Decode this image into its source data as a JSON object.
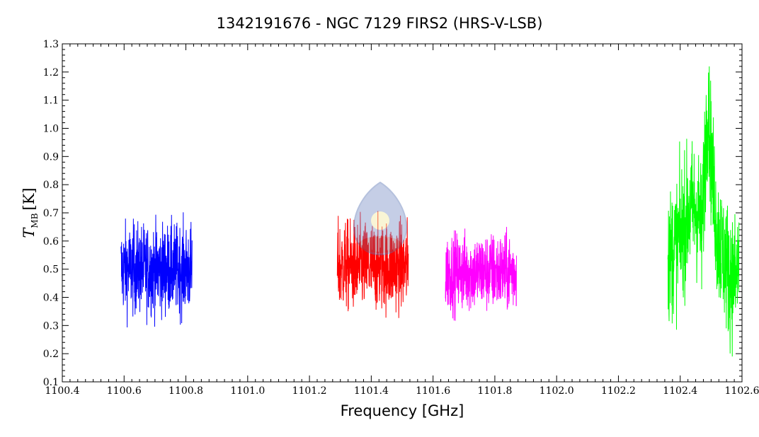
{
  "chart_data": {
    "type": "line",
    "title": "1342191676 - NGC 7129 FIRS2 (HRS-V-LSB)",
    "xlabel": "Frequency [GHz]",
    "ylabel_main": "T",
    "ylabel_sub": "MB",
    "ylabel_unit": "[K]",
    "xlim": [
      1100.4,
      1102.6
    ],
    "ylim": [
      0.1,
      1.3
    ],
    "xticks": [
      1100.4,
      1100.6,
      1100.8,
      1101.0,
      1101.2,
      1101.4,
      1101.6,
      1101.8,
      1102.0,
      1102.2,
      1102.4,
      1102.6
    ],
    "xtick_labels": [
      "1100.4",
      "1100.6",
      "1100.8",
      "1101.0",
      "1101.2",
      "1101.4",
      "1101.6",
      "1101.8",
      "1102.0",
      "1102.2",
      "1102.4",
      "1102.6"
    ],
    "yticks": [
      0.1,
      0.2,
      0.3,
      0.4,
      0.5,
      0.6,
      0.7,
      0.8,
      0.9,
      1.0,
      1.1,
      1.2,
      1.3
    ],
    "ytick_labels": [
      "0.1",
      "0.2",
      "0.3",
      "0.4",
      "0.5",
      "0.6",
      "0.7",
      "0.8",
      "0.9",
      "1.0",
      "1.1",
      "1.2",
      "1.3"
    ],
    "grid": false,
    "legend": "none",
    "series": [
      {
        "color": "#0000ff",
        "x_start": 1100.59,
        "x_end": 1100.82,
        "mean": 0.5,
        "min": 0.27,
        "max": 0.75
      },
      {
        "color": "#ff0000",
        "x_start": 1101.29,
        "x_end": 1101.52,
        "mean": 0.51,
        "min": 0.29,
        "max": 0.76
      },
      {
        "color": "#ff00ff",
        "x_start": 1101.64,
        "x_end": 1101.87,
        "mean": 0.49,
        "min": 0.27,
        "max": 0.65
      },
      {
        "color": "#00ff00",
        "x_start": 1102.36,
        "x_end": 1102.59,
        "mean": 0.55,
        "min": 0.19,
        "max": 1.22,
        "profile": [
          [
            1102.36,
            0.54
          ],
          [
            1102.38,
            0.57
          ],
          [
            1102.4,
            0.62
          ],
          [
            1102.42,
            0.68
          ],
          [
            1102.44,
            0.72
          ],
          [
            1102.46,
            0.7
          ],
          [
            1102.47,
            0.62
          ],
          [
            1102.48,
            0.9
          ],
          [
            1102.49,
            1.1
          ],
          [
            1102.5,
            0.9
          ],
          [
            1102.51,
            0.75
          ],
          [
            1102.52,
            0.62
          ],
          [
            1102.54,
            0.55
          ],
          [
            1102.56,
            0.48
          ],
          [
            1102.58,
            0.46
          ],
          [
            1102.59,
            0.52
          ]
        ]
      }
    ]
  }
}
